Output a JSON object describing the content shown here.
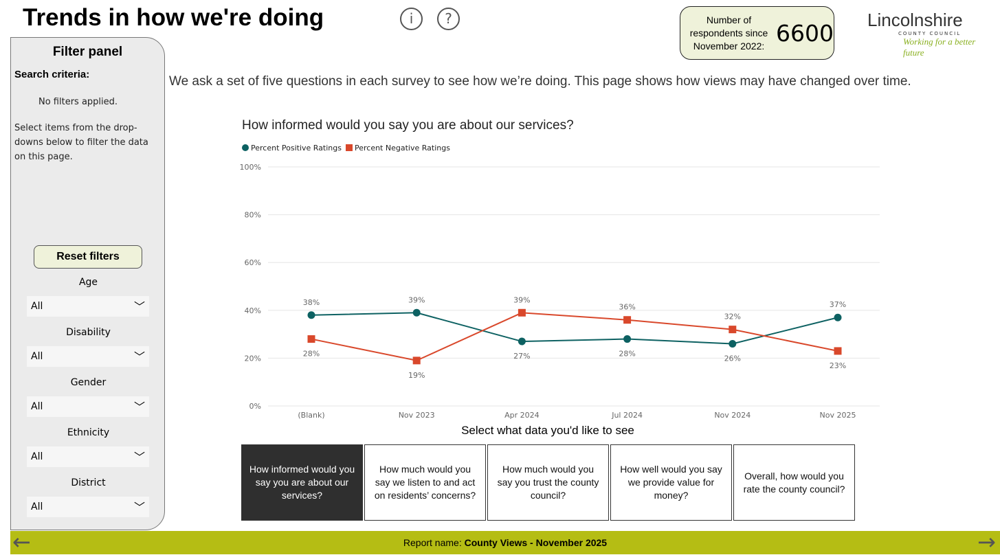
{
  "header": {
    "title": "Trends in how we're doing",
    "info_icon": "i",
    "help_icon": "?",
    "respondents_label": "Number of respondents since November 2022:",
    "respondents_count": "6600",
    "logo": {
      "name": "Lincolnshire",
      "sub": "COUNTY COUNCIL",
      "tagline": "Working for a better future"
    }
  },
  "filter_panel": {
    "title": "Filter panel",
    "search_criteria": "Search criteria:",
    "status": "No filters applied.",
    "hint": "Select items from the drop-downs below to filter the data on this page.",
    "reset_label": "Reset filters",
    "filters": [
      {
        "label": "Age",
        "value": "All"
      },
      {
        "label": "Disability",
        "value": "All"
      },
      {
        "label": "Gender",
        "value": "All"
      },
      {
        "label": "Ethnicity",
        "value": "All"
      },
      {
        "label": "District",
        "value": "All"
      }
    ]
  },
  "intro": "We ask a set of five questions in each survey to see how we’re doing. This page shows how views may have changed over time.",
  "chart_data": {
    "type": "line",
    "title": "How informed would you say you are about our services?",
    "categories": [
      "(Blank)",
      "Nov 2023",
      "Apr 2024",
      "Jul 2024",
      "Nov 2024",
      "Nov 2025"
    ],
    "series": [
      {
        "name": "Percent Positive Ratings",
        "values": [
          38,
          39,
          27,
          28,
          26,
          37
        ],
        "color": "#0d6162",
        "marker": "circle"
      },
      {
        "name": "Percent Negative Ratings",
        "values": [
          28,
          19,
          39,
          36,
          32,
          23
        ],
        "color": "#d9482b",
        "marker": "square"
      }
    ],
    "ylim": [
      0,
      100
    ],
    "yticks": [
      "0%",
      "20%",
      "40%",
      "60%",
      "80%",
      "100%"
    ],
    "grid": true,
    "legend": "top-left"
  },
  "selector": {
    "label": "Select what data you'd like to see",
    "options": [
      "How informed would you say you are about our services?",
      "How much would you say we listen to and act on residents’ concerns?",
      "How much would you say you trust the county council?",
      "How well would you say we provide value for money?",
      "Overall, how would you rate the county council?"
    ],
    "active": 0
  },
  "footer": {
    "prefix": "Report name: ",
    "name": "County Views - November 2025",
    "prev": "←",
    "next": "→"
  }
}
